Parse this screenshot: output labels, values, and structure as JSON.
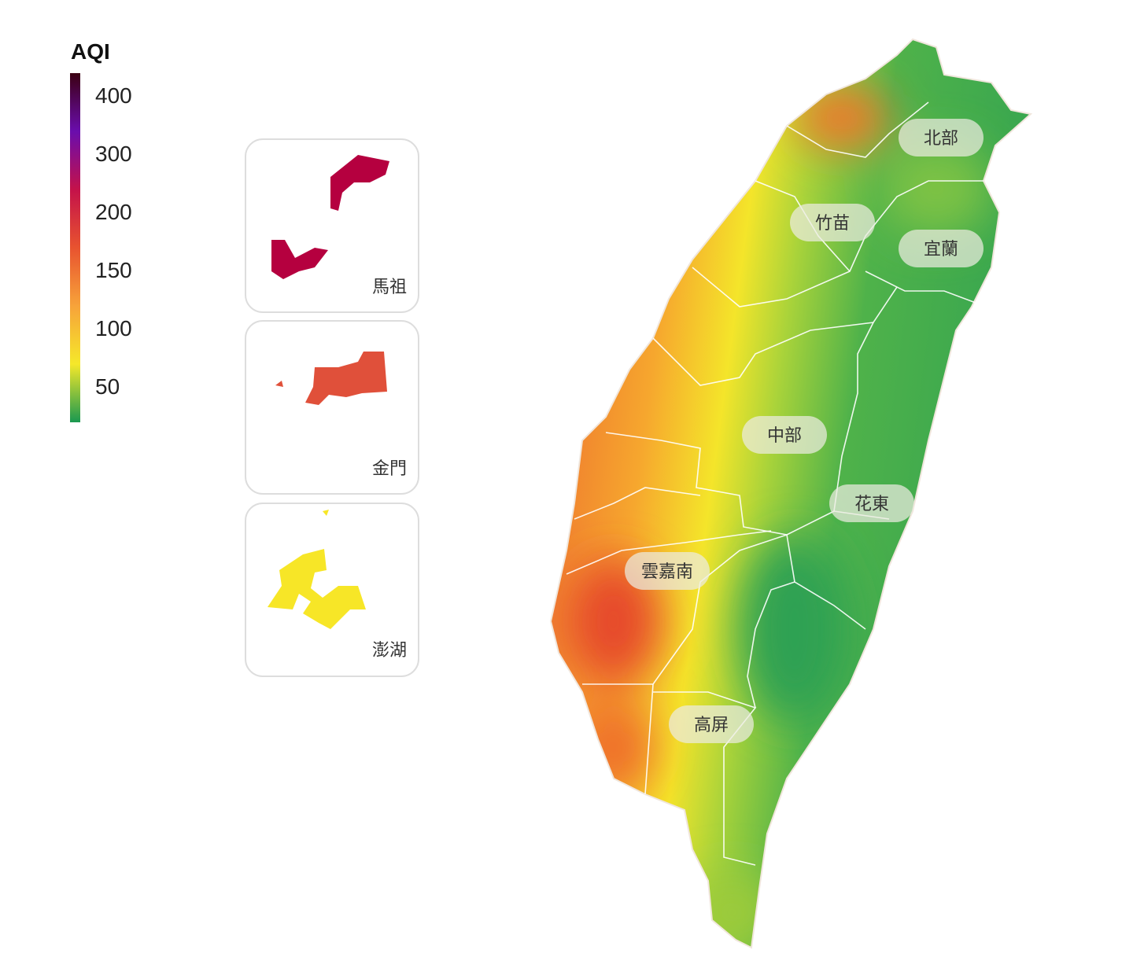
{
  "legend": {
    "title": "AQI",
    "ticks": [
      400,
      300,
      200,
      150,
      100,
      50
    ],
    "colors": [
      "#1a9850",
      "#f5e82a",
      "#f7a33a",
      "#e8532f",
      "#c4124a",
      "#6a0dad",
      "#3b0012"
    ]
  },
  "insets": [
    {
      "label": "馬祖",
      "color": "#b5003f"
    },
    {
      "label": "金門",
      "color": "#e0503a"
    },
    {
      "label": "澎湖",
      "color": "#f7e627"
    }
  ],
  "regions": [
    "北部",
    "竹苗",
    "宜蘭",
    "中部",
    "花東",
    "雲嘉南",
    "高屏"
  ]
}
